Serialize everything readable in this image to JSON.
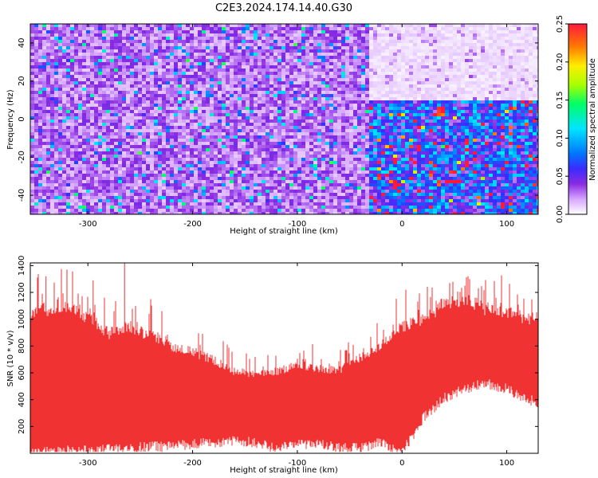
{
  "title": "C2E3.2024.174.14.40.G30",
  "chart_data": [
    {
      "type": "heatmap",
      "xlabel": "Height of straight line (km)",
      "ylabel": "Frequency (Hz)",
      "xlim": [
        -355,
        130
      ],
      "ylim": [
        -50,
        50
      ],
      "xticks": [
        -300,
        -200,
        -100,
        0,
        100
      ],
      "yticks": [
        -40,
        -20,
        0,
        20,
        40
      ],
      "colorbar": {
        "label": "Normalized spectral amplitude",
        "range": [
          0.0,
          0.25
        ],
        "ticks": [
          "0.00",
          "0.05",
          "0.10",
          "0.15",
          "0.20",
          "0.25"
        ],
        "colors": [
          "#ffffff",
          "#d6a6ff",
          "#8a2be2",
          "#3a2bff",
          "#0077ff",
          "#00e5ff",
          "#00ff66",
          "#a8ff00",
          "#ffee00",
          "#ff7a00",
          "#ff1a3c"
        ]
      },
      "regions": [
        {
          "x": [
            -355,
            -35
          ],
          "y": [
            -50,
            50
          ],
          "level": 0.035
        },
        {
          "x": [
            -35,
            130
          ],
          "y": [
            10,
            50
          ],
          "level": 0.01
        },
        {
          "x": [
            -35,
            130
          ],
          "y": [
            -50,
            10
          ],
          "level": 0.08
        }
      ]
    },
    {
      "type": "area",
      "xlabel": "Height of straight line (km)",
      "ylabel": "SNR (10 * v/v)",
      "xlim": [
        -355,
        130
      ],
      "ylim": [
        0,
        1420
      ],
      "xticks": [
        -300,
        -200,
        -100,
        0,
        100
      ],
      "yticks": [
        200,
        400,
        600,
        800,
        1000,
        1200,
        1400
      ],
      "color": "#f03232",
      "series": [
        {
          "x": [
            -355,
            -320,
            -300,
            -280,
            -260,
            -240,
            -220,
            -200,
            -180,
            -160,
            -140,
            -120,
            -100,
            -80,
            -60,
            -40,
            -20,
            -5,
            0,
            10,
            20,
            40,
            60,
            80,
            100,
            120,
            130
          ],
          "lower": [
            40,
            60,
            60,
            70,
            80,
            90,
            90,
            110,
            120,
            130,
            120,
            80,
            100,
            110,
            80,
            80,
            120,
            50,
            80,
            150,
            300,
            450,
            520,
            560,
            520,
            440,
            420
          ],
          "upper": [
            1000,
            1050,
            960,
            850,
            900,
            830,
            760,
            720,
            660,
            580,
            560,
            580,
            620,
            600,
            590,
            680,
            760,
            880,
            900,
            920,
            940,
            1060,
            1100,
            1020,
            1000,
            960,
            950
          ]
        }
      ],
      "spikes": [
        {
          "x": -340,
          "y": 1320
        },
        {
          "x": -320,
          "y": 1370
        },
        {
          "x": -295,
          "y": 1290
        },
        {
          "x": -265,
          "y": 1430
        },
        {
          "x": -240,
          "y": 1150
        },
        {
          "x": 60,
          "y": 1250
        }
      ]
    }
  ]
}
